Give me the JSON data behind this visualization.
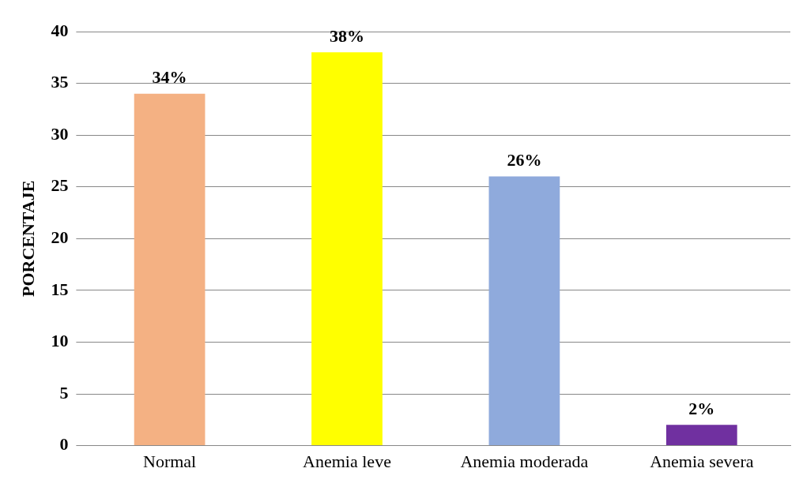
{
  "chart_data": {
    "type": "bar",
    "ylabel": "PORCENTAJE",
    "categories": [
      "Normal",
      "Anemia leve",
      "Anemia moderada",
      "Anemia severa"
    ],
    "values": [
      34,
      38,
      26,
      2
    ],
    "colors": [
      "#f4b183",
      "#ffff00",
      "#8faadc",
      "#7030a0"
    ],
    "value_labels": [
      "34%",
      "38%",
      "26%",
      "2%"
    ],
    "ylim": [
      0,
      40
    ],
    "yticks": [
      0,
      5,
      10,
      15,
      20,
      25,
      30,
      35,
      40
    ],
    "grid": "y",
    "legend": false
  }
}
